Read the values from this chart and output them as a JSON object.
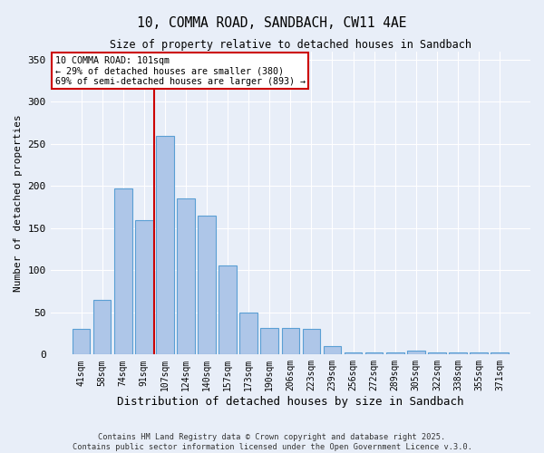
{
  "title": "10, COMMA ROAD, SANDBACH, CW11 4AE",
  "subtitle": "Size of property relative to detached houses in Sandbach",
  "xlabel": "Distribution of detached houses by size in Sandbach",
  "ylabel": "Number of detached properties",
  "categories": [
    "41sqm",
    "58sqm",
    "74sqm",
    "91sqm",
    "107sqm",
    "124sqm",
    "140sqm",
    "157sqm",
    "173sqm",
    "190sqm",
    "206sqm",
    "223sqm",
    "239sqm",
    "256sqm",
    "272sqm",
    "289sqm",
    "305sqm",
    "322sqm",
    "338sqm",
    "355sqm",
    "371sqm"
  ],
  "values": [
    30,
    65,
    197,
    160,
    260,
    185,
    165,
    106,
    50,
    32,
    32,
    30,
    10,
    3,
    3,
    3,
    5,
    3,
    3,
    3,
    2
  ],
  "bar_color": "#aec6e8",
  "bar_edge_color": "#5a9fd4",
  "marker_index": 4,
  "marker_line_color": "#cc0000",
  "annotation_line1": "10 COMMA ROAD: 101sqm",
  "annotation_line2": "← 29% of detached houses are smaller (380)",
  "annotation_line3": "69% of semi-detached houses are larger (893) →",
  "annotation_box_color": "#cc0000",
  "background_color": "#e8eef8",
  "ylim": [
    0,
    360
  ],
  "yticks": [
    0,
    50,
    100,
    150,
    200,
    250,
    300,
    350
  ],
  "footer1": "Contains HM Land Registry data © Crown copyright and database right 2025.",
  "footer2": "Contains public sector information licensed under the Open Government Licence v.3.0."
}
